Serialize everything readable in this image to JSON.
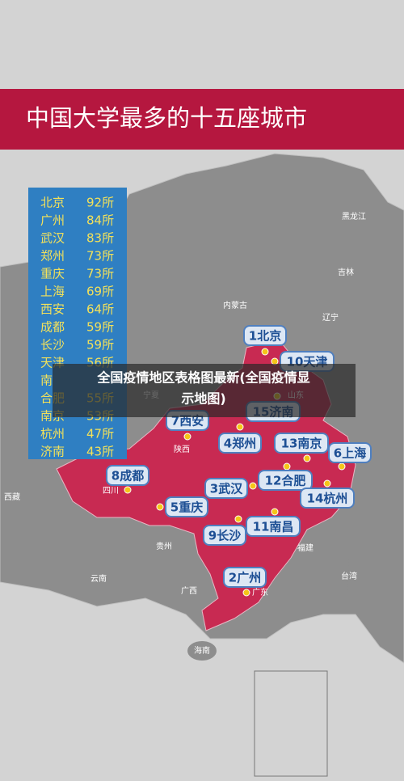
{
  "header": {
    "title": "中国大学最多的十五座城市"
  },
  "ranking": [
    {
      "name": "北京",
      "count": "92所"
    },
    {
      "name": "广州",
      "count": "84所"
    },
    {
      "name": "武汉",
      "count": "83所"
    },
    {
      "name": "郑州",
      "count": "73所"
    },
    {
      "name": "重庆",
      "count": "73所"
    },
    {
      "name": "上海",
      "count": "69所"
    },
    {
      "name": "西安",
      "count": "64所"
    },
    {
      "name": "成都",
      "count": "59所"
    },
    {
      "name": "长沙",
      "count": "59所"
    },
    {
      "name": "天津",
      "count": "56所"
    },
    {
      "name": "南"
    },
    {
      "name": "合肥",
      "count": "55所"
    },
    {
      "name": "南京",
      "count": "53所"
    },
    {
      "name": "杭州",
      "count": "47所"
    },
    {
      "name": "济南",
      "count": "43所"
    }
  ],
  "pins": [
    "1北京",
    "10天津",
    "15济南",
    "7西安",
    "4郑州",
    "13南京",
    "6上海",
    "8成都",
    "3武汉",
    "12合肥",
    "14杭州",
    "5重庆",
    "9长沙",
    "11南昌",
    "2广州"
  ],
  "provinces": [
    "黑龙江",
    "吉林",
    "内蒙古",
    "辽宁",
    "宁夏",
    "山东",
    "陕西",
    "四川",
    "西藏",
    "贵州",
    "福建",
    "云南",
    "广西",
    "广东",
    "台湾",
    "海南"
  ],
  "caption": {
    "line1": "全国疫情地区表格图最新(全国疫情显",
    "line2": "示地图)"
  }
}
